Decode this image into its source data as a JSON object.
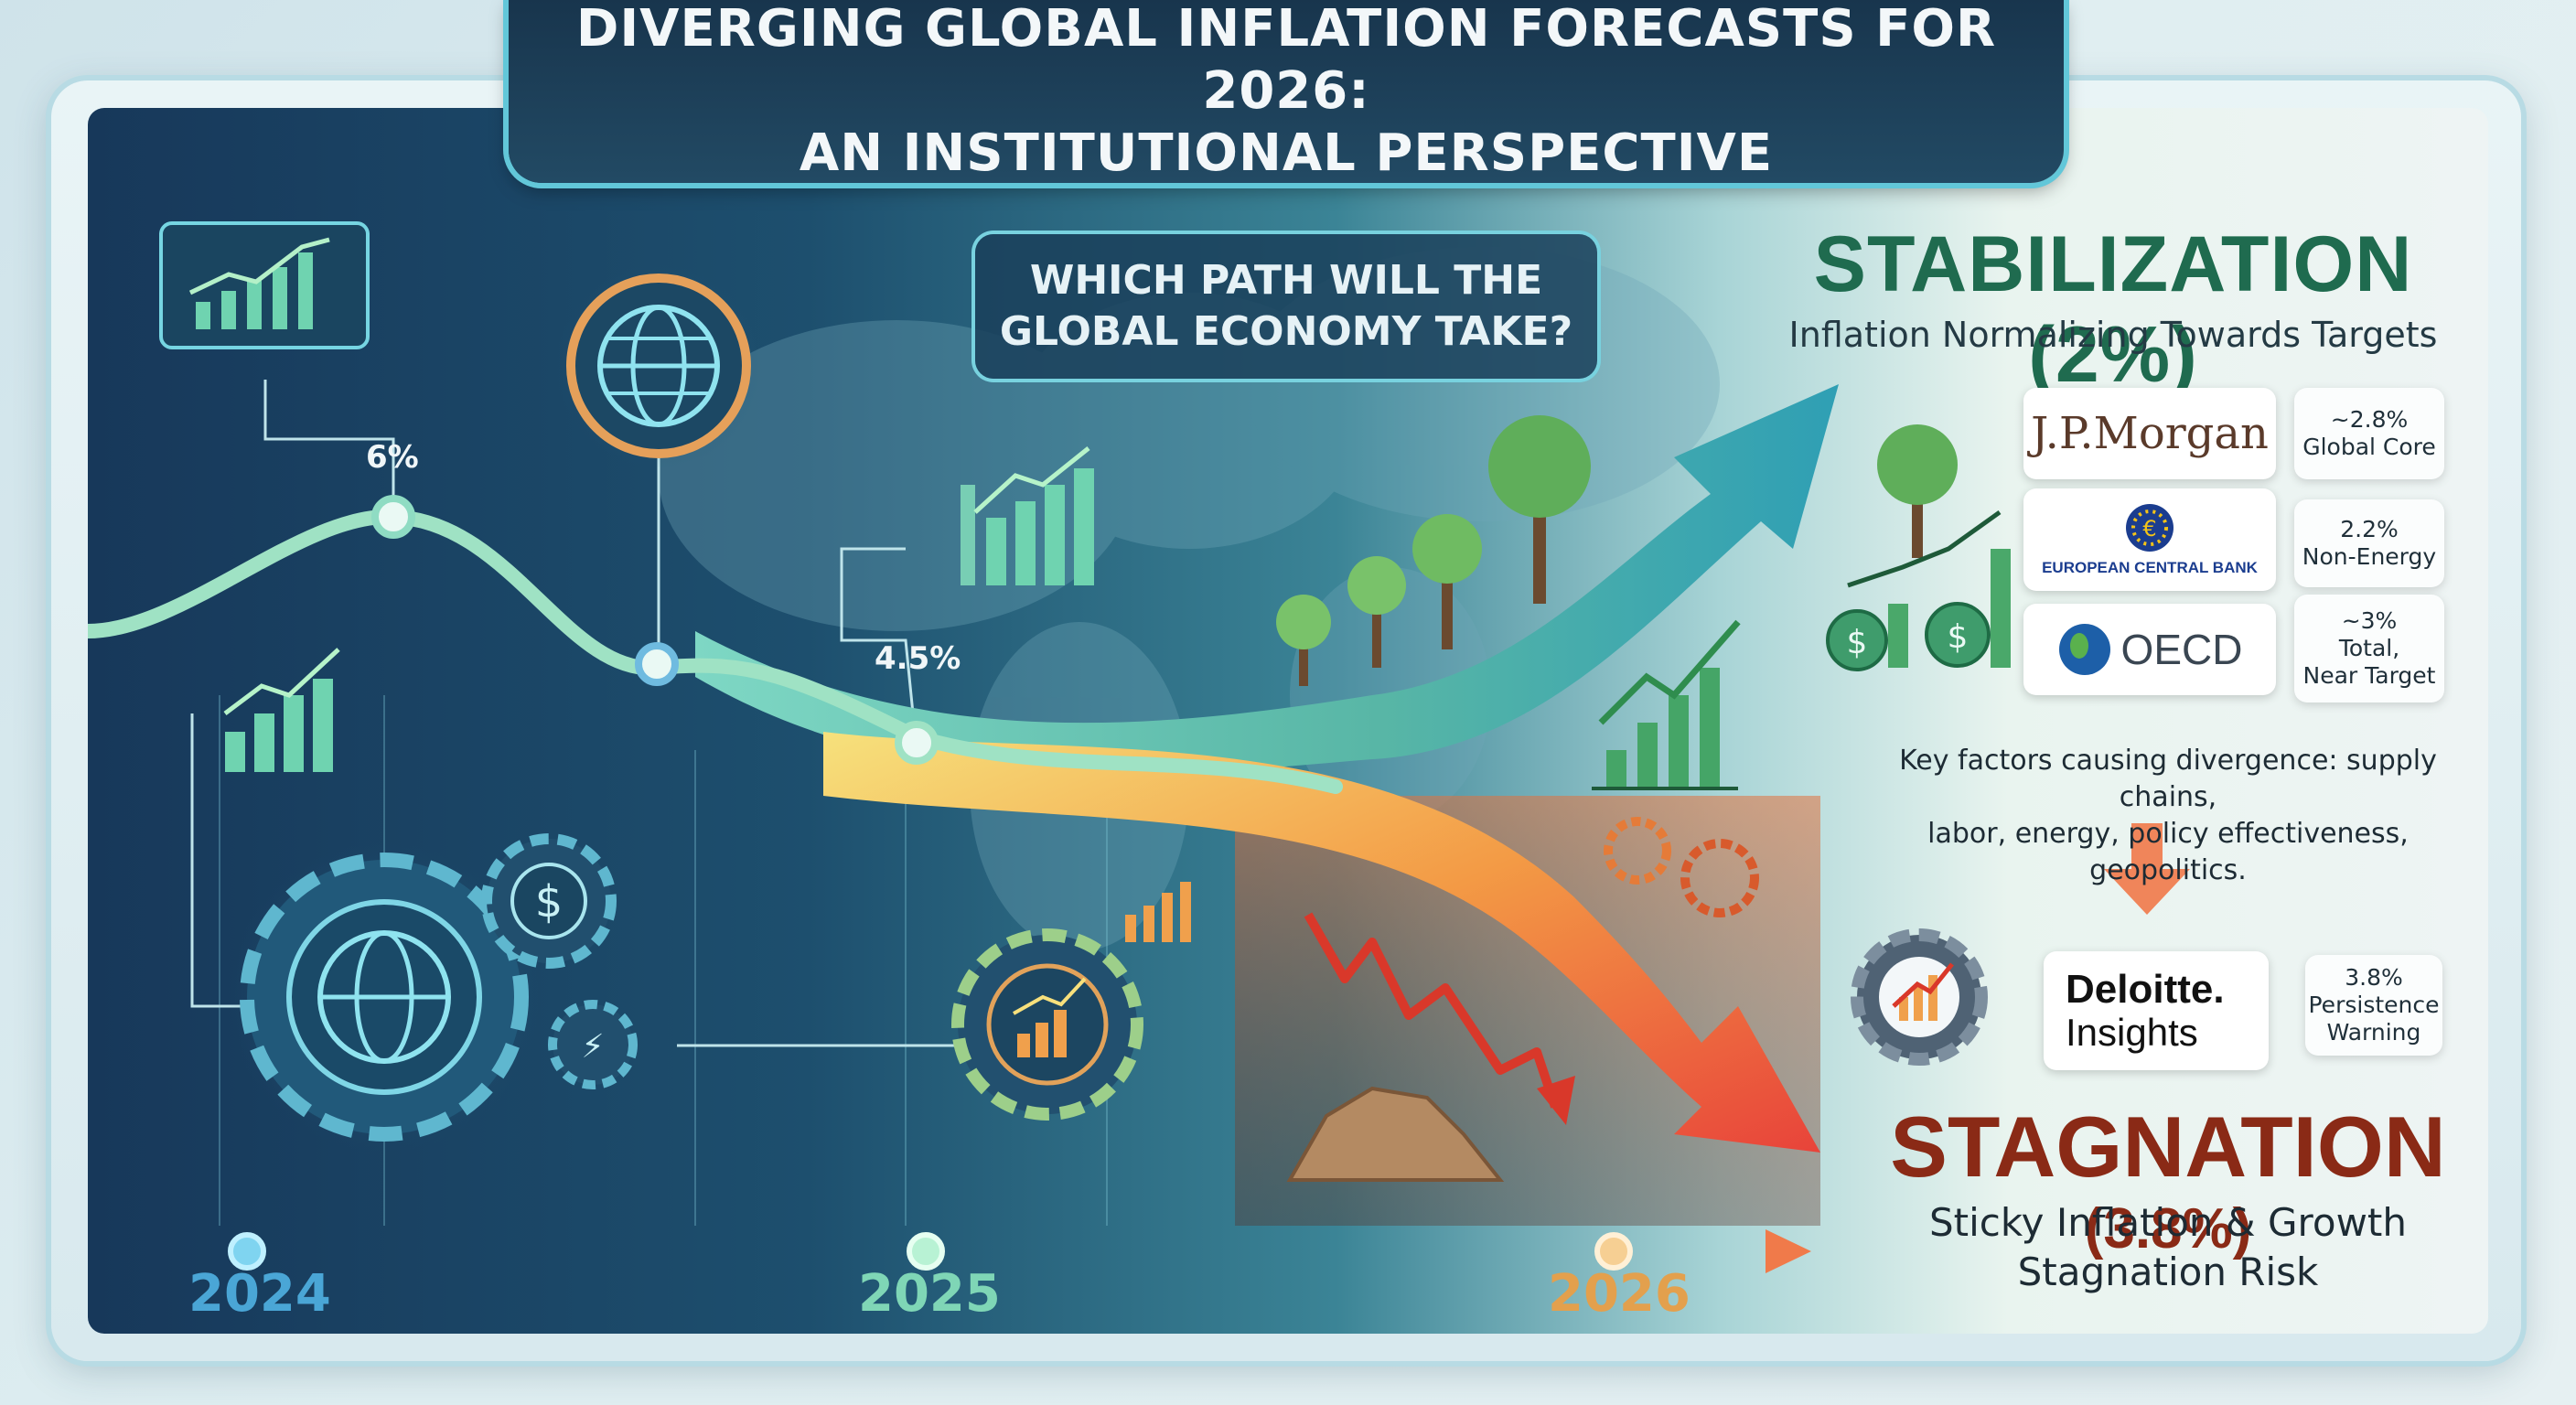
{
  "header": {
    "title_line1": "DIVERGING GLOBAL INFLATION FORECASTS FOR 2026:",
    "title_line2": "AN INSTITUTIONAL PERSPECTIVE"
  },
  "question": {
    "line1": "WHICH PATH WILL THE",
    "line2": "GLOBAL ECONOMY TAKE?"
  },
  "timeline": {
    "peak_label": "6%",
    "mid_label": "4.5%",
    "years": [
      "2024",
      "2025",
      "2026"
    ]
  },
  "stabilization": {
    "title": "STABILIZATION (2%)",
    "subtitle": "Inflation Normalizing Towards Targets",
    "forecasts": [
      {
        "institution": "J.P.Morgan",
        "value": "~2.8%",
        "note": "Global Core"
      },
      {
        "institution": "EUROPEAN CENTRAL BANK",
        "value": "2.2%",
        "note": "Non-Energy"
      },
      {
        "institution": "OECD",
        "value": "~3%",
        "note": "Total,",
        "note2": "Near Target"
      }
    ]
  },
  "factors": {
    "line1": "Key factors causing divergence: supply chains,",
    "line2": "labor, energy, policy effectiveness, geopolitics."
  },
  "stagnation": {
    "institution_line1": "Deloitte.",
    "institution_line2": "Insights",
    "value": "3.8%",
    "note1": "Persistence",
    "note2": "Warning",
    "title": "STAGNATION",
    "title_pct": "(3.8%)",
    "subtitle_line1": "Sticky Inflation & Growth",
    "subtitle_line2": "Stagnation Risk"
  },
  "colors": {
    "stabilization": "#1f6b4f",
    "stagnation": "#8a2a16",
    "year_2024": "#4aa6d6",
    "year_2025": "#7fd6b6",
    "year_2026": "#e3a04d"
  }
}
